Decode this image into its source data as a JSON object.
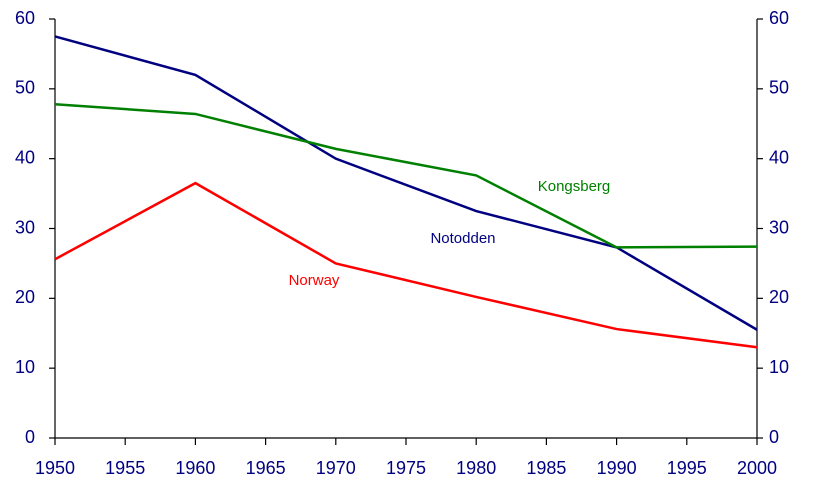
{
  "chart_data": {
    "type": "line",
    "x": [
      1950,
      1960,
      1970,
      1980,
      1990,
      2000
    ],
    "series": [
      {
        "name": "Notodden",
        "color": "#000080",
        "values": [
          57.5,
          52,
          40,
          32.5,
          27.3,
          15.5
        ]
      },
      {
        "name": "Kongsberg",
        "color": "#008000",
        "values": [
          47.8,
          46.4,
          41.4,
          37.6,
          27.3,
          27.4
        ]
      },
      {
        "name": "Norway",
        "color": "#ff0000",
        "values": [
          25.6,
          36.5,
          25,
          20.2,
          15.6,
          13
        ]
      }
    ],
    "xlim": [
      1950,
      2000
    ],
    "xticks": [
      1950,
      1955,
      1960,
      1965,
      1970,
      1975,
      1980,
      1985,
      1990,
      1995,
      2000
    ],
    "ylim": [
      0,
      60
    ],
    "yticks": [
      0,
      10,
      20,
      30,
      40,
      50,
      60
    ],
    "y2lim": [
      0,
      60
    ],
    "y2ticks": [
      0,
      10,
      20,
      30,
      40,
      50,
      60
    ],
    "grid": false
  }
}
